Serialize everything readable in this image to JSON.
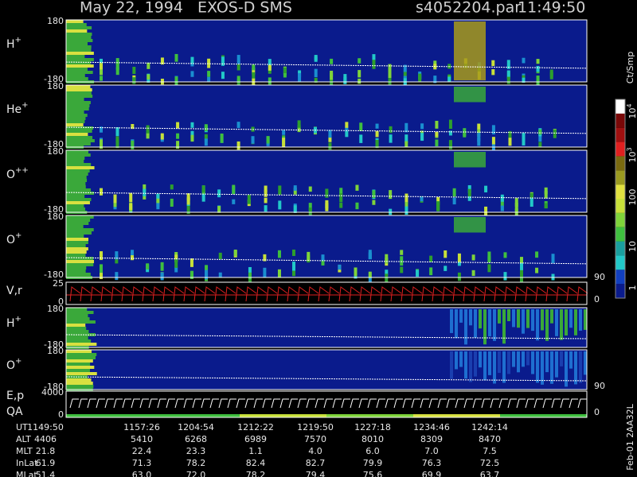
{
  "header": {
    "title": "May 22, 1994   EXOS-D SMS",
    "file": "s4052204.par",
    "time": "11:49:50"
  },
  "panels": [
    {
      "label": "H",
      "charge": "+",
      "ticks": [
        180,
        -180
      ]
    },
    {
      "label": "He",
      "charge": "+",
      "ticks": [
        180,
        -180
      ]
    },
    {
      "label": "O",
      "charge": "++",
      "ticks": [
        180,
        -180
      ]
    },
    {
      "label": "O",
      "charge": "+",
      "ticks": [
        180,
        -180
      ]
    },
    {
      "label": "V,r",
      "ticks": [
        25,
        0
      ],
      "right_ticks": [
        90,
        0
      ]
    },
    {
      "label": "H",
      "charge": "+",
      "ticks": [
        180,
        -180
      ]
    },
    {
      "label": "O",
      "charge": "+",
      "ticks": [
        180,
        -180
      ]
    },
    {
      "label": "E,p",
      "label2": "QA",
      "ticks": [
        4000,
        0
      ],
      "right_ticks": [
        90,
        0
      ]
    }
  ],
  "colorbar": {
    "title": "Ct/Smp",
    "ticks": [
      {
        "base": "10",
        "exp": "4"
      },
      {
        "base": "10",
        "exp": "3"
      },
      "100",
      "10",
      "1"
    ]
  },
  "table": {
    "rows": [
      {
        "label": "UT",
        "values": [
          "1149:50",
          "1157:26",
          "1204:54",
          "1212:22",
          "1219:50",
          "1227:18",
          "1234:46",
          "1242:14"
        ]
      },
      {
        "label": "ALT",
        "values": [
          "4406",
          "5410",
          "6268",
          "6989",
          "7570",
          "8010",
          "8309",
          "8470"
        ]
      },
      {
        "label": "MLT",
        "values": [
          "21.8",
          "22.4",
          "23.3",
          "1.1",
          "4.0",
          "6.0",
          "7.0",
          "7.5"
        ]
      },
      {
        "label": "InLat",
        "values": [
          "61.9",
          "71.3",
          "78.2",
          "82.4",
          "82.7",
          "79.9",
          "76.3",
          "72.5"
        ]
      },
      {
        "label": "MLat",
        "values": [
          "51.4",
          "63.0",
          "72.0",
          "78.2",
          "79.4",
          "75.6",
          "69.9",
          "63.7"
        ]
      }
    ]
  },
  "footer": "Feb-01 2AA32L"
}
